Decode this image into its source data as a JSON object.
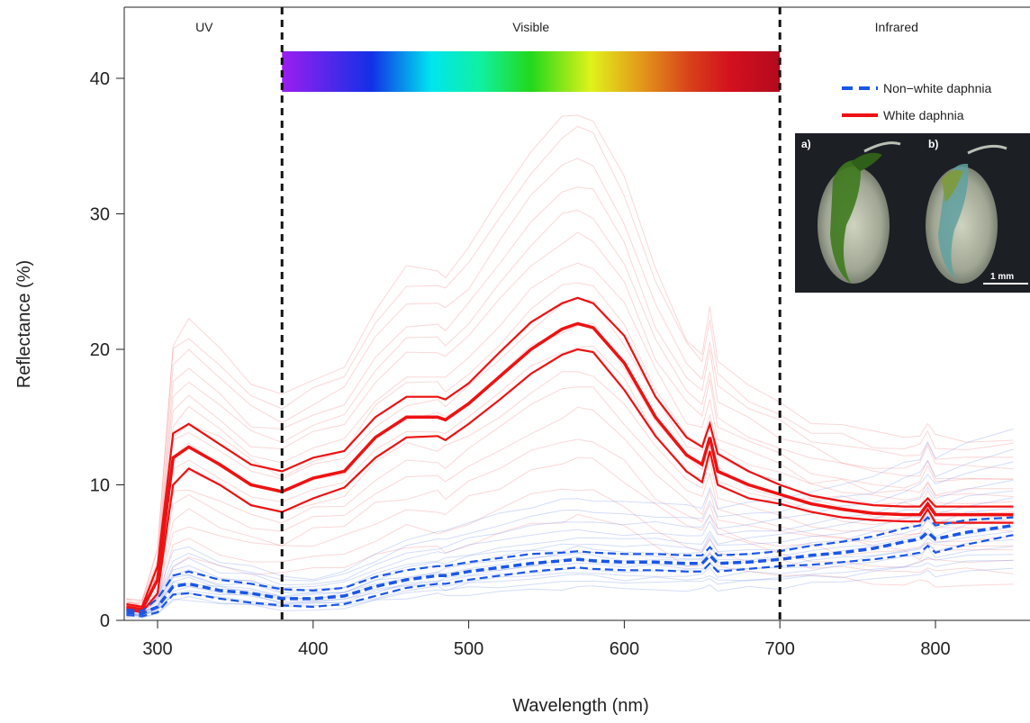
{
  "chart_data": {
    "type": "line",
    "title": "",
    "xlabel": "Wavelength (nm)",
    "ylabel": "Reflectance (%)",
    "xlim": [
      280,
      850
    ],
    "ylim": [
      0,
      45
    ],
    "x_ticks": [
      300,
      400,
      500,
      600,
      700,
      800
    ],
    "y_ticks": [
      0,
      10,
      20,
      30,
      40
    ],
    "grid": false,
    "regions": [
      {
        "label": "UV",
        "from": 280,
        "to": 380
      },
      {
        "label": "Visible",
        "from": 380,
        "to": 700
      },
      {
        "label": "Infrared",
        "from": 700,
        "to": 850
      }
    ],
    "boundaries": [
      380,
      700
    ],
    "spectrum_bar": {
      "from": 380,
      "to": 700,
      "y_bottom": 39,
      "y_top": 42
    },
    "legend": {
      "placement": "top-right",
      "entries": [
        {
          "label": "Non−white daphnia",
          "color": "#1a56e6",
          "style": "dashed"
        },
        {
          "label": "White daphnia",
          "color": "#ee1111",
          "style": "solid"
        }
      ]
    },
    "inset": {
      "panel_labels": [
        "a)",
        "b)"
      ],
      "scale_bar_label": "1 mm"
    },
    "x": [
      280,
      290,
      300,
      310,
      320,
      340,
      360,
      380,
      400,
      420,
      440,
      460,
      480,
      485,
      500,
      520,
      540,
      560,
      570,
      580,
      600,
      620,
      640,
      650,
      655,
      660,
      680,
      700,
      720,
      740,
      760,
      780,
      790,
      795,
      800,
      820,
      850
    ],
    "series": [
      {
        "name": "White daphnia",
        "role": "mean",
        "color": "#ee1111",
        "style": "solid",
        "values": [
          1.0,
          0.8,
          3.0,
          12.0,
          12.8,
          11.5,
          10.0,
          9.5,
          10.5,
          11.0,
          13.5,
          15.0,
          15.0,
          14.8,
          16.0,
          18.0,
          20.0,
          21.5,
          21.9,
          21.6,
          19.0,
          15.0,
          12.2,
          11.5,
          13.5,
          11.0,
          10.0,
          9.3,
          8.6,
          8.2,
          7.9,
          7.8,
          7.8,
          8.6,
          7.8,
          7.8,
          7.8
        ]
      },
      {
        "name": "White daphnia",
        "role": "upper",
        "color": "#ee1111",
        "style": "solid",
        "values": [
          1.2,
          1.0,
          4.0,
          13.8,
          14.5,
          13.0,
          11.5,
          11.0,
          12.0,
          12.5,
          15.0,
          16.5,
          16.5,
          16.3,
          17.5,
          19.8,
          22.0,
          23.4,
          23.8,
          23.4,
          21.0,
          16.5,
          13.5,
          12.8,
          14.5,
          12.3,
          11.0,
          10.0,
          9.2,
          8.8,
          8.5,
          8.4,
          8.4,
          9.0,
          8.4,
          8.4,
          8.4
        ]
      },
      {
        "name": "White daphnia",
        "role": "lower",
        "color": "#ee1111",
        "style": "solid",
        "values": [
          0.8,
          0.6,
          2.0,
          10.0,
          11.2,
          10.0,
          8.5,
          8.0,
          9.0,
          9.8,
          12.0,
          13.5,
          13.6,
          13.3,
          14.5,
          16.3,
          18.2,
          19.6,
          20.0,
          19.8,
          17.0,
          13.6,
          11.0,
          10.2,
          12.5,
          10.0,
          9.0,
          8.6,
          8.0,
          7.6,
          7.4,
          7.3,
          7.3,
          8.2,
          7.2,
          7.2,
          7.2
        ]
      },
      {
        "name": "Non−white daphnia",
        "role": "mean",
        "color": "#1a56e6",
        "style": "dashed",
        "values": [
          0.6,
          0.5,
          1.0,
          2.5,
          2.7,
          2.2,
          2.0,
          1.6,
          1.6,
          1.8,
          2.5,
          3.0,
          3.3,
          3.3,
          3.6,
          3.9,
          4.2,
          4.4,
          4.5,
          4.4,
          4.3,
          4.3,
          4.2,
          4.2,
          4.8,
          4.2,
          4.3,
          4.5,
          4.8,
          5.0,
          5.3,
          5.8,
          6.0,
          6.5,
          6.0,
          6.5,
          7.0
        ]
      },
      {
        "name": "Non−white daphnia",
        "role": "upper",
        "color": "#1a56e6",
        "style": "dashed",
        "values": [
          0.8,
          0.7,
          1.6,
          3.3,
          3.6,
          3.0,
          2.7,
          2.3,
          2.2,
          2.4,
          3.2,
          3.7,
          4.0,
          4.0,
          4.3,
          4.6,
          4.9,
          5.0,
          5.1,
          5.0,
          4.9,
          4.9,
          4.8,
          4.8,
          5.4,
          4.8,
          4.9,
          5.1,
          5.5,
          5.8,
          6.2,
          6.8,
          7.0,
          7.6,
          7.0,
          7.4,
          7.6
        ]
      },
      {
        "name": "Non−white daphnia",
        "role": "lower",
        "color": "#1a56e6",
        "style": "dashed",
        "values": [
          0.4,
          0.3,
          0.6,
          1.9,
          2.0,
          1.6,
          1.3,
          1.1,
          1.0,
          1.2,
          1.8,
          2.4,
          2.7,
          2.7,
          3.0,
          3.3,
          3.6,
          3.8,
          3.9,
          3.8,
          3.7,
          3.7,
          3.6,
          3.6,
          4.2,
          3.6,
          3.8,
          4.0,
          4.1,
          4.3,
          4.5,
          4.8,
          5.0,
          5.5,
          5.0,
          5.6,
          6.3
        ]
      }
    ],
    "individual_curve_scales": {
      "white": [
        0.35,
        0.45,
        0.55,
        0.62,
        0.7,
        0.78,
        0.85,
        0.92,
        1.0,
        1.08,
        1.15,
        1.22,
        1.3,
        1.38,
        1.46,
        1.55,
        1.65,
        1.72
      ],
      "nonwhite": [
        0.55,
        0.65,
        0.72,
        0.8,
        0.86,
        0.92,
        1.0,
        1.06,
        1.12,
        1.2,
        1.28,
        1.38,
        1.5,
        1.65,
        1.8,
        2.0
      ]
    }
  }
}
